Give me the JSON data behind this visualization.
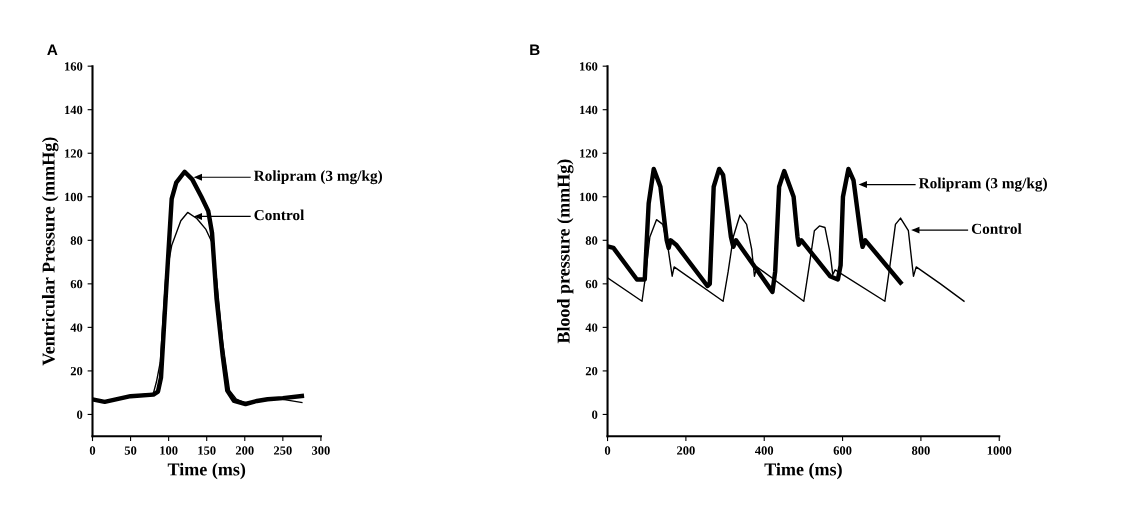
{
  "chart_data": [
    {
      "type": "line",
      "title": "A",
      "xlabel": "Time (ms)",
      "ylabel": "Ventricular Pressure (mmHg)",
      "xlim": [
        0,
        300
      ],
      "xticks": [
        0,
        50,
        100,
        150,
        200,
        250,
        300
      ],
      "ylim": [
        -10,
        160
      ],
      "yticks": [
        0,
        20,
        40,
        60,
        80,
        100,
        120,
        140,
        160
      ],
      "grid": false,
      "legend": false,
      "marker": "none",
      "series": [
        {
          "color": "#000000",
          "x": [
            0,
            16,
            50,
            80,
            86,
            90,
            96,
            104,
            110,
            121,
            131,
            143,
            152,
            157,
            163,
            171,
            177,
            186,
            201,
            216,
            230,
            250,
            275
          ],
          "values": [
            6.9,
            5.8,
            8.4,
            9.1,
            10.5,
            17,
            53,
            99,
            106.5,
            111.5,
            108,
            100,
            93.5,
            83.4,
            53,
            27,
            11,
            6.2,
            4.8,
            6.2,
            7,
            7.5,
            8.5
          ]
        },
        {
          "color": "#000000",
          "x": [
            0,
            16,
            50,
            80,
            84,
            89,
            96,
            104,
            116,
            125,
            137,
            149,
            157,
            163,
            171,
            180,
            189,
            201,
            220,
            240,
            275
          ],
          "values": [
            7,
            6,
            8.4,
            9.8,
            15,
            24,
            62,
            77.6,
            89,
            92.8,
            90,
            85,
            79,
            62,
            33,
            11,
            7,
            5.2,
            6,
            7.5,
            5.5
          ]
        }
      ],
      "annotations": [
        "Rolipram (3 mg/kg)",
        "Control"
      ]
    },
    {
      "type": "line",
      "title": "B",
      "xlabel": "Time (ms)",
      "ylabel": "Blood pressure (mmHg)",
      "xlim": [
        0,
        1000
      ],
      "xticks": [
        0,
        200,
        400,
        600,
        800,
        1000
      ],
      "ylim": [
        -10,
        160
      ],
      "yticks": [
        0,
        20,
        40,
        60,
        80,
        100,
        120,
        140,
        160
      ],
      "grid": false,
      "legend": false,
      "marker": "none",
      "series": [
        {
          "color": "#000000",
          "x": [
            0,
            15,
            75,
            95,
            105,
            118,
            135,
            151,
            156,
            161,
            175,
            255,
            261,
            271,
            285,
            295,
            315,
            321,
            328,
            421,
            428,
            438,
            451,
            475,
            485,
            488,
            495,
            568,
            588,
            595,
            601,
            615,
            628,
            648,
            651,
            658,
            748
          ],
          "values": [
            77.2,
            76.5,
            62,
            62,
            97,
            112.8,
            104.6,
            80,
            76.5,
            80,
            78,
            59,
            60,
            104.6,
            112.8,
            110,
            81.5,
            77,
            80,
            56.3,
            65.7,
            104.6,
            111.8,
            100,
            81.5,
            78,
            80,
            63.5,
            62,
            68.5,
            100,
            112.8,
            107.5,
            80,
            77,
            80,
            60.6
          ]
        },
        {
          "color": "#000000",
          "x": [
            0,
            88,
            95,
            108,
            125,
            141,
            155,
            165,
            170,
            295,
            308,
            321,
            338,
            355,
            368,
            375,
            381,
            501,
            515,
            528,
            541,
            555,
            568,
            575,
            581,
            708,
            721,
            735,
            748,
            768,
            781,
            788,
            850,
            910
          ],
          "values": [
            62.8,
            52,
            61,
            81.5,
            89.5,
            87.3,
            75.8,
            63.5,
            67.8,
            52,
            65.7,
            81.5,
            91.6,
            87.3,
            75.8,
            63.5,
            67.8,
            52,
            68.5,
            84.4,
            86.6,
            85.9,
            74.3,
            64.2,
            66.4,
            52,
            68.5,
            87.3,
            90.2,
            84.4,
            63.5,
            67.8,
            60,
            52
          ]
        }
      ],
      "annotations": [
        "Rolipram (3 mg/kg)",
        "Control"
      ]
    }
  ]
}
